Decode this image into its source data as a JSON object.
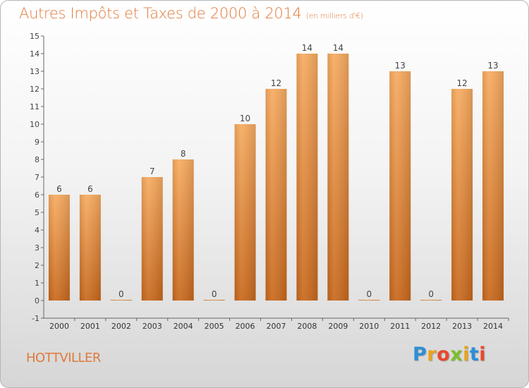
{
  "header": {
    "title": "Autres Impôts et Taxes de 2000 à 2014",
    "unit": "(en milliers d'€)"
  },
  "footer": {
    "commune": "HOTTVILLER",
    "brand": "Proxiti"
  },
  "colors": {
    "title": "#e07a3c",
    "bar_light": "#f6a85c",
    "bar_dark": "#c9691e",
    "axis": "#555555"
  },
  "chart_data": {
    "type": "bar",
    "title": "Autres Impôts et Taxes de 2000 à 2014",
    "subtitle": "(en milliers d'€)",
    "xlabel": "",
    "ylabel": "",
    "categories": [
      "2000",
      "2001",
      "2002",
      "2003",
      "2004",
      "2005",
      "2006",
      "2007",
      "2008",
      "2009",
      "2010",
      "2011",
      "2012",
      "2013",
      "2014"
    ],
    "values": [
      6,
      6,
      0,
      7,
      8,
      0,
      10,
      12,
      14,
      14,
      0,
      13,
      0,
      12,
      13
    ],
    "ylim": [
      -1,
      15
    ],
    "yticks": [
      "-1",
      "0",
      "1",
      "2",
      "3",
      "4",
      "5",
      "6",
      "7",
      "8",
      "9",
      "10",
      "11",
      "12",
      "13",
      "14",
      "15"
    ],
    "grid": false,
    "legend": "none"
  }
}
